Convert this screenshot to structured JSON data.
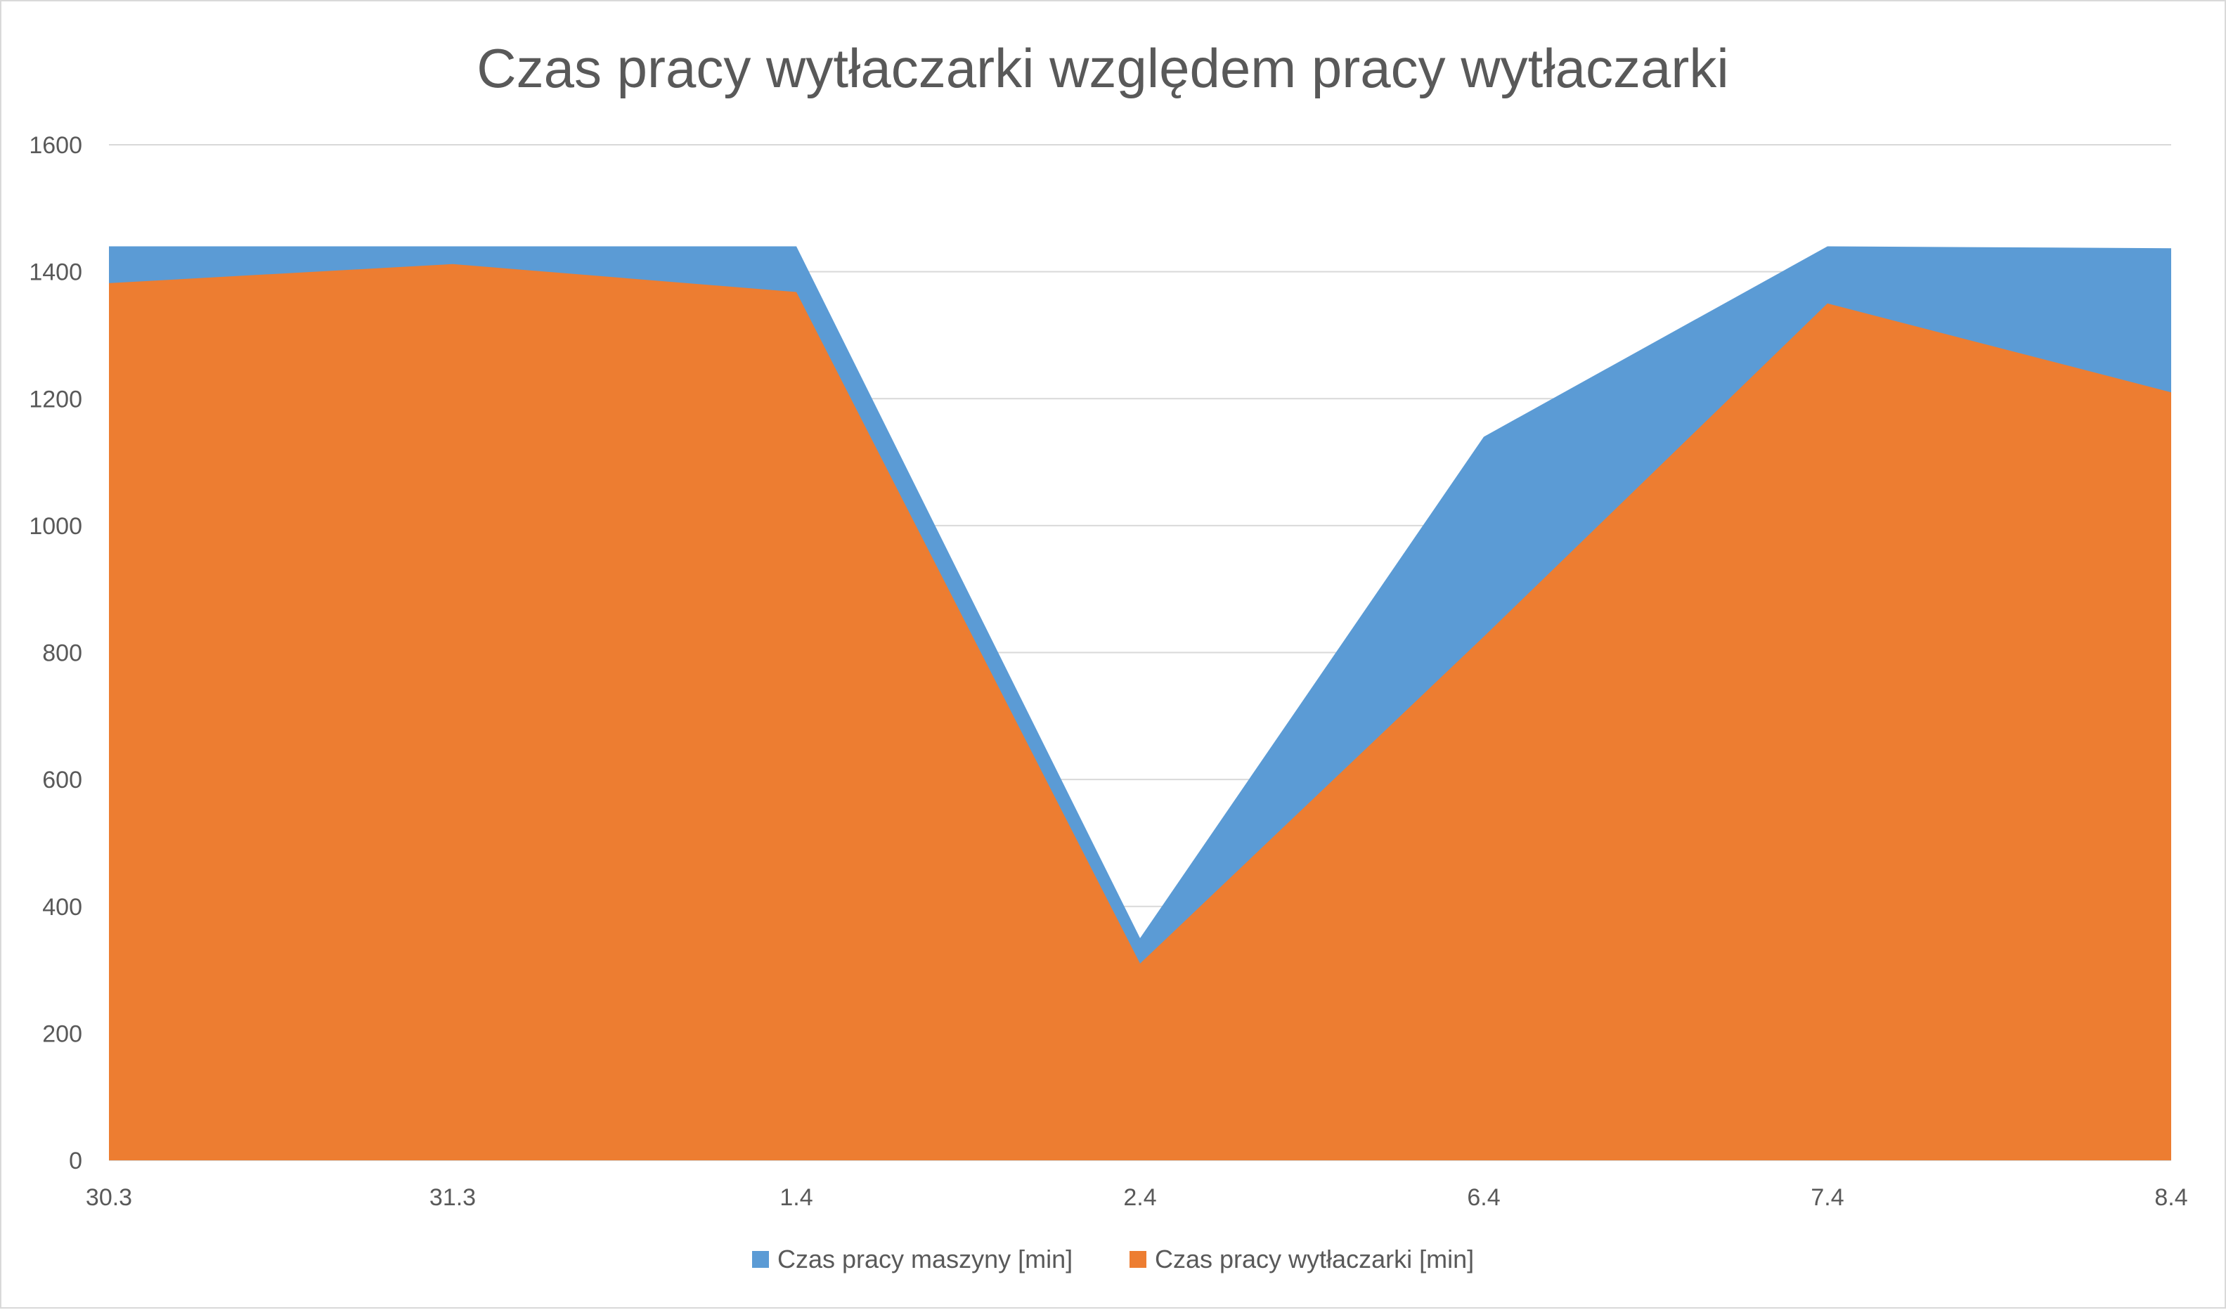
{
  "chart_data": {
    "type": "area",
    "title": "Czas pracy wytłaczarki względem pracy wytłaczarki",
    "xlabel": "",
    "ylabel": "",
    "categories": [
      "30.3",
      "31.3",
      "1.4",
      "2.4",
      "6.4",
      "7.4",
      "8.4"
    ],
    "ylim": [
      0,
      1600
    ],
    "yticks": [
      0,
      200,
      400,
      600,
      800,
      1000,
      1200,
      1400,
      1600
    ],
    "grid": true,
    "legend_position": "bottom",
    "series": [
      {
        "name": "Czas pracy maszyny [min]",
        "color": "#5B9BD5",
        "values": [
          1440,
          1440,
          1440,
          350,
          1140,
          1440,
          1437
        ]
      },
      {
        "name": "Czas pracy wytłaczarki [min]",
        "color": "#ED7D31",
        "values": [
          1382,
          1412,
          1368,
          310,
          825,
          1350,
          1210
        ]
      }
    ]
  }
}
